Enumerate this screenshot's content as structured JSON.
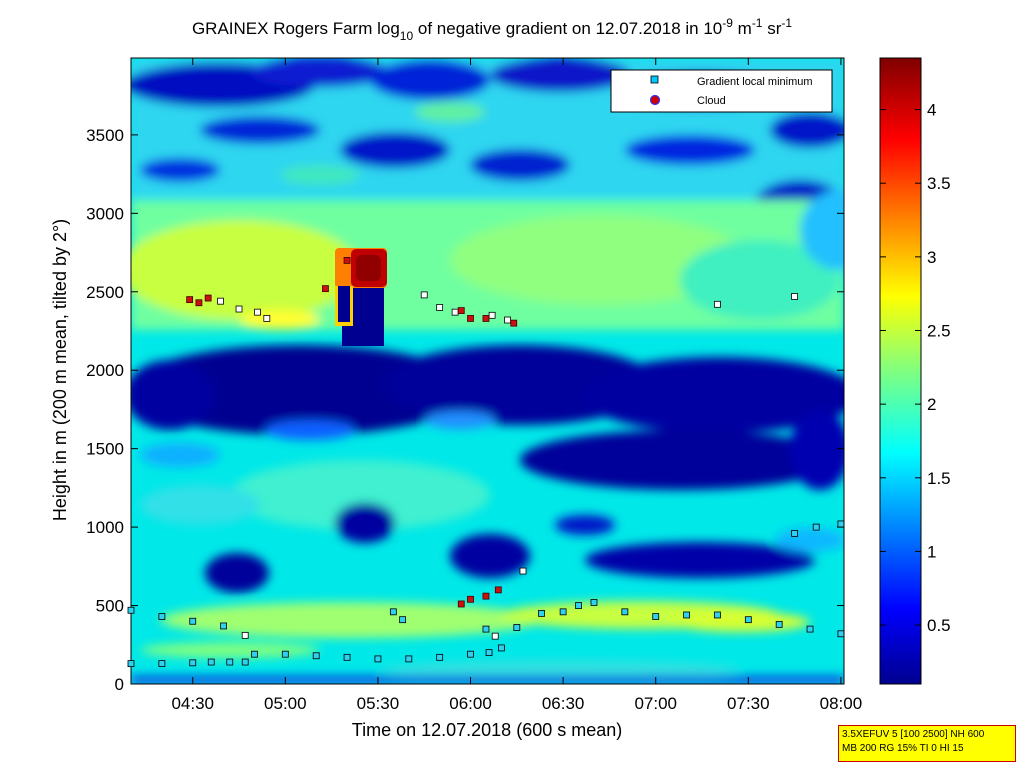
{
  "chart_data": {
    "type": "heatmap",
    "title": {
      "main": "GRAINEX Rogers Farm log",
      "sub": "10",
      "rest": " of negative gradient on 12.07.2018 in 10",
      "exp1": "-9",
      "unit1": " m",
      "exp2": "-1",
      "unit2": " sr",
      "exp3": "-1"
    },
    "xlabel": "Time on 12.07.2018 (600 s mean)",
    "ylabel": "Height in m (200 m mean, tilted by 2°)",
    "x_ticks": [
      "04:30",
      "05:00",
      "05:30",
      "06:00",
      "06:30",
      "07:00",
      "07:30",
      "08:00"
    ],
    "x_range": [
      "04:10",
      "08:01"
    ],
    "y_ticks": [
      0,
      500,
      1000,
      1500,
      2000,
      2500,
      3000,
      3500
    ],
    "y_range": [
      0,
      3990
    ],
    "colorbar": {
      "ticks": [
        "0.5",
        "1",
        "1.5",
        "2",
        "2.5",
        "3",
        "3.5",
        "4"
      ],
      "range": [
        0.1,
        4.35
      ]
    },
    "legend": {
      "position": "top-right",
      "entries": [
        {
          "label": "Gradient local minimum",
          "marker": "square",
          "color": "#00c8ff"
        },
        {
          "label": "Cloud",
          "marker": "circle",
          "color": "#cc0000"
        }
      ]
    },
    "series": [
      {
        "name": "Gradient local minimum",
        "points": [
          [
            "04:10",
            130
          ],
          [
            "04:20",
            130
          ],
          [
            "04:30",
            135
          ],
          [
            "04:36",
            140
          ],
          [
            "04:42",
            140
          ],
          [
            "04:47",
            140
          ],
          [
            "04:50",
            190
          ],
          [
            "05:00",
            190
          ],
          [
            "05:10",
            180
          ],
          [
            "05:20",
            170
          ],
          [
            "05:30",
            160
          ],
          [
            "05:40",
            160
          ],
          [
            "05:50",
            170
          ],
          [
            "06:00",
            190
          ],
          [
            "06:06",
            200
          ],
          [
            "06:10",
            230
          ],
          [
            "04:10",
            470
          ],
          [
            "04:20",
            430
          ],
          [
            "04:30",
            400
          ],
          [
            "04:40",
            370
          ],
          [
            "04:47",
            310
          ],
          [
            "06:05",
            350
          ],
          [
            "06:15",
            360
          ],
          [
            "06:23",
            450
          ],
          [
            "06:30",
            460
          ],
          [
            "06:35",
            500
          ],
          [
            "06:40",
            520
          ],
          [
            "06:50",
            460
          ],
          [
            "07:00",
            430
          ],
          [
            "07:10",
            440
          ],
          [
            "07:20",
            440
          ],
          [
            "07:30",
            410
          ],
          [
            "07:40",
            380
          ],
          [
            "07:50",
            350
          ],
          [
            "08:00",
            320
          ],
          [
            "07:45",
            960
          ],
          [
            "07:52",
            1000
          ],
          [
            "08:00",
            1020
          ],
          [
            "04:39",
            2440
          ],
          [
            "04:45",
            2390
          ],
          [
            "04:51",
            2370
          ],
          [
            "04:54",
            2330
          ],
          [
            "05:45",
            2480
          ],
          [
            "05:50",
            2400
          ],
          [
            "05:55",
            2370
          ],
          [
            "06:07",
            2350
          ],
          [
            "06:12",
            2320
          ],
          [
            "07:20",
            2420
          ],
          [
            "07:45",
            2470
          ],
          [
            "05:35",
            460
          ],
          [
            "05:38",
            410
          ],
          [
            "06:17",
            720
          ],
          [
            "06:08",
            305
          ]
        ]
      },
      {
        "name": "Cloud",
        "points": [
          [
            "04:29",
            2450
          ],
          [
            "04:32",
            2430
          ],
          [
            "04:35",
            2460
          ],
          [
            "05:57",
            2380
          ],
          [
            "06:00",
            2330
          ],
          [
            "06:05",
            2330
          ],
          [
            "06:14",
            2300
          ],
          [
            "05:57",
            510
          ],
          [
            "06:00",
            540
          ],
          [
            "06:05",
            560
          ],
          [
            "06:09",
            600
          ],
          [
            "05:13",
            2520
          ],
          [
            "05:20",
            2700
          ]
        ]
      }
    ]
  },
  "info_box": {
    "line1": "3.5XEFUV 5 [100 2500] NH 600",
    "line2": "MB 200 RG 15% TI 0 HI 15"
  }
}
